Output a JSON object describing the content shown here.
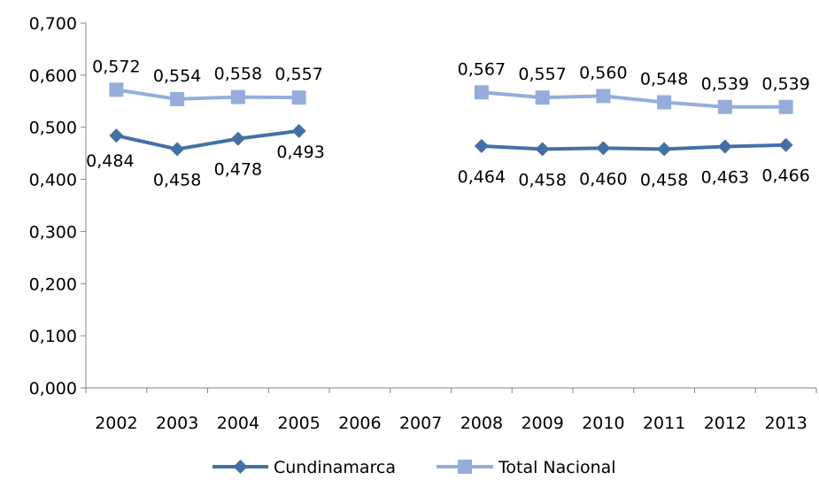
{
  "chart_data": {
    "type": "line",
    "title": "",
    "xlabel": "",
    "ylabel": "",
    "categories": [
      "2002",
      "2003",
      "2004",
      "2005",
      "2006",
      "2007",
      "2008",
      "2009",
      "2010",
      "2011",
      "2012",
      "2013"
    ],
    "ylim": [
      0,
      0.7
    ],
    "yticks": [
      0,
      0.1,
      0.2,
      0.3,
      0.4,
      0.5,
      0.6,
      0.7
    ],
    "ytick_labels": [
      "0,000",
      "0,100",
      "0,200",
      "0,300",
      "0,400",
      "0,500",
      "0,600",
      "0,700"
    ],
    "grid": false,
    "legend_position": "bottom",
    "series": [
      {
        "name": "Cundinamarca",
        "color": "#4470a6",
        "marker": "diamond",
        "values": [
          0.484,
          0.458,
          0.478,
          0.493,
          null,
          null,
          0.464,
          0.458,
          0.46,
          0.458,
          0.463,
          0.466
        ],
        "labels": [
          "0,484",
          "0,458",
          "0,478",
          "0,493",
          "",
          "",
          "0,464",
          "0,458",
          "0,460",
          "0,458",
          "0,463",
          "0,466"
        ]
      },
      {
        "name": "Total Nacional",
        "color": "#95adda",
        "marker": "square",
        "values": [
          0.572,
          0.554,
          0.558,
          0.557,
          null,
          null,
          0.567,
          0.557,
          0.56,
          0.548,
          0.539,
          0.539
        ],
        "labels": [
          "0,572",
          "0,554",
          "0,558",
          "0,557",
          "",
          "",
          "0,567",
          "0,557",
          "0,560",
          "0,548",
          "0,539",
          "0,539"
        ]
      }
    ]
  }
}
